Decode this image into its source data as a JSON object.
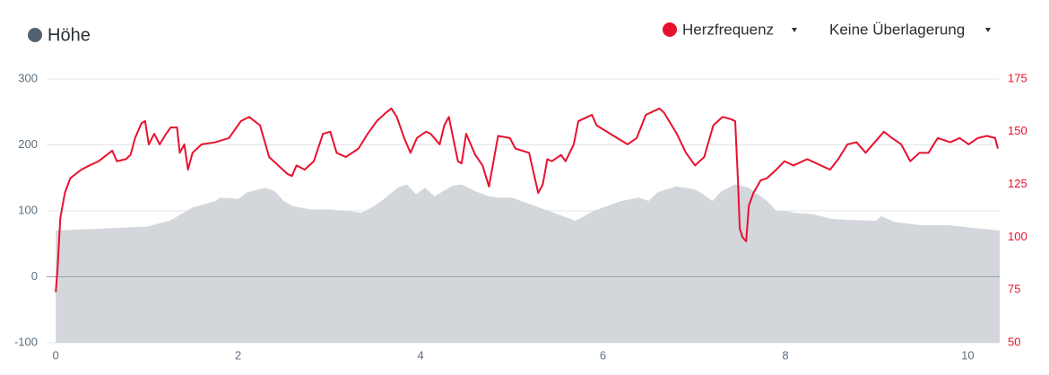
{
  "chart_data": {
    "type": "line",
    "xlim": [
      -0.1,
      10.35
    ],
    "xticks": [
      0,
      2,
      4,
      6,
      8,
      10
    ],
    "ylim": [
      -100,
      300
    ],
    "yticks": [
      -100,
      0,
      100,
      200,
      300
    ],
    "y2lim": [
      50,
      175
    ],
    "y2ticks": [
      50,
      75,
      100,
      125,
      150,
      175
    ],
    "grid": true,
    "overlay_label": "Keine Überlagerung",
    "series": [
      {
        "name": "Höhe",
        "type": "area",
        "color": "#d3d7db",
        "marker_color": "#536270",
        "x": [
          0,
          0.5,
          1.0,
          1.25,
          1.5,
          1.75,
          1.8,
          2.0,
          2.1,
          2.3,
          2.4,
          2.5,
          2.6,
          2.8,
          3.0,
          3.2,
          3.35,
          3.5,
          3.6,
          3.75,
          3.85,
          3.95,
          4.05,
          4.15,
          4.35,
          4.45,
          4.6,
          4.75,
          4.85,
          5.0,
          5.2,
          5.4,
          5.6,
          5.7,
          5.9,
          6.0,
          6.2,
          6.4,
          6.5,
          6.6,
          6.8,
          7.0,
          7.1,
          7.2,
          7.3,
          7.45,
          7.6,
          7.8,
          7.9,
          8.0,
          8.1,
          8.3,
          8.5,
          8.7,
          9.0,
          9.05,
          9.2,
          9.5,
          9.8,
          10.0,
          10.35
        ],
        "values": [
          70,
          73,
          76,
          85,
          105,
          115,
          120,
          118,
          128,
          135,
          130,
          115,
          107,
          102,
          102,
          100,
          97,
          108,
          118,
          135,
          140,
          125,
          135,
          122,
          138,
          140,
          130,
          122,
          120,
          120,
          110,
          100,
          90,
          85,
          100,
          105,
          115,
          120,
          115,
          128,
          137,
          133,
          125,
          115,
          130,
          140,
          135,
          115,
          100,
          100,
          97,
          95,
          88,
          86,
          85,
          92,
          83,
          78,
          78,
          75,
          70
        ]
      },
      {
        "name": "Herzfrequenz",
        "type": "line",
        "axis": "y2",
        "color": "#e8112d",
        "x": [
          0,
          0.02,
          0.05,
          0.1,
          0.16,
          0.28,
          0.37,
          0.47,
          0.62,
          0.67,
          0.77,
          0.82,
          0.87,
          0.94,
          0.98,
          1.02,
          1.08,
          1.14,
          1.21,
          1.26,
          1.33,
          1.36,
          1.41,
          1.45,
          1.5,
          1.6,
          1.75,
          1.9,
          2.03,
          2.12,
          2.24,
          2.34,
          2.44,
          2.54,
          2.59,
          2.64,
          2.73,
          2.83,
          2.93,
          3.01,
          3.08,
          3.18,
          3.32,
          3.42,
          3.52,
          3.62,
          3.68,
          3.74,
          3.82,
          3.89,
          3.96,
          4.06,
          4.11,
          4.21,
          4.26,
          4.31,
          4.41,
          4.45,
          4.5,
          4.6,
          4.68,
          4.75,
          4.85,
          4.98,
          5.04,
          5.19,
          5.29,
          5.34,
          5.39,
          5.44,
          5.54,
          5.59,
          5.68,
          5.73,
          5.83,
          5.88,
          5.93,
          6.08,
          6.27,
          6.37,
          6.47,
          6.62,
          6.67,
          6.81,
          6.91,
          7.01,
          7.11,
          7.21,
          7.31,
          7.4,
          7.45,
          7.48,
          7.5,
          7.53,
          7.57,
          7.6,
          7.65,
          7.73,
          7.8,
          7.9,
          7.99,
          8.09,
          8.24,
          8.39,
          8.49,
          8.58,
          8.68,
          8.78,
          8.88,
          8.98,
          9.08,
          9.17,
          9.27,
          9.37,
          9.47,
          9.57,
          9.67,
          9.81,
          9.91,
          10.01,
          10.11,
          10.21,
          10.3,
          10.33
        ],
        "values": [
          74,
          85,
          109,
          121,
          128,
          132,
          134,
          136,
          141,
          136,
          137,
          139,
          147,
          154,
          155,
          144,
          149,
          144,
          149,
          152,
          152,
          140,
          144,
          132,
          140,
          144,
          145,
          147,
          155,
          157,
          153,
          138,
          134,
          130,
          129,
          134,
          132,
          136,
          149,
          150,
          140,
          138,
          142,
          149,
          155,
          159,
          161,
          157,
          147,
          140,
          147,
          150,
          149,
          144,
          153,
          157,
          136,
          135,
          149,
          139,
          134,
          124,
          148,
          147,
          142,
          140,
          121,
          125,
          137,
          136,
          139,
          136,
          144,
          155,
          157,
          158,
          153,
          149,
          144,
          147,
          158,
          161,
          159,
          149,
          140,
          134,
          138,
          153,
          157,
          156,
          155,
          127,
          104,
          100,
          98,
          115,
          121,
          127,
          128,
          132,
          136,
          134,
          137,
          134,
          132,
          137,
          144,
          145,
          140,
          145,
          150,
          147,
          144,
          136,
          140,
          140,
          147,
          145,
          147,
          144,
          147,
          148,
          147,
          142
        ]
      }
    ]
  }
}
